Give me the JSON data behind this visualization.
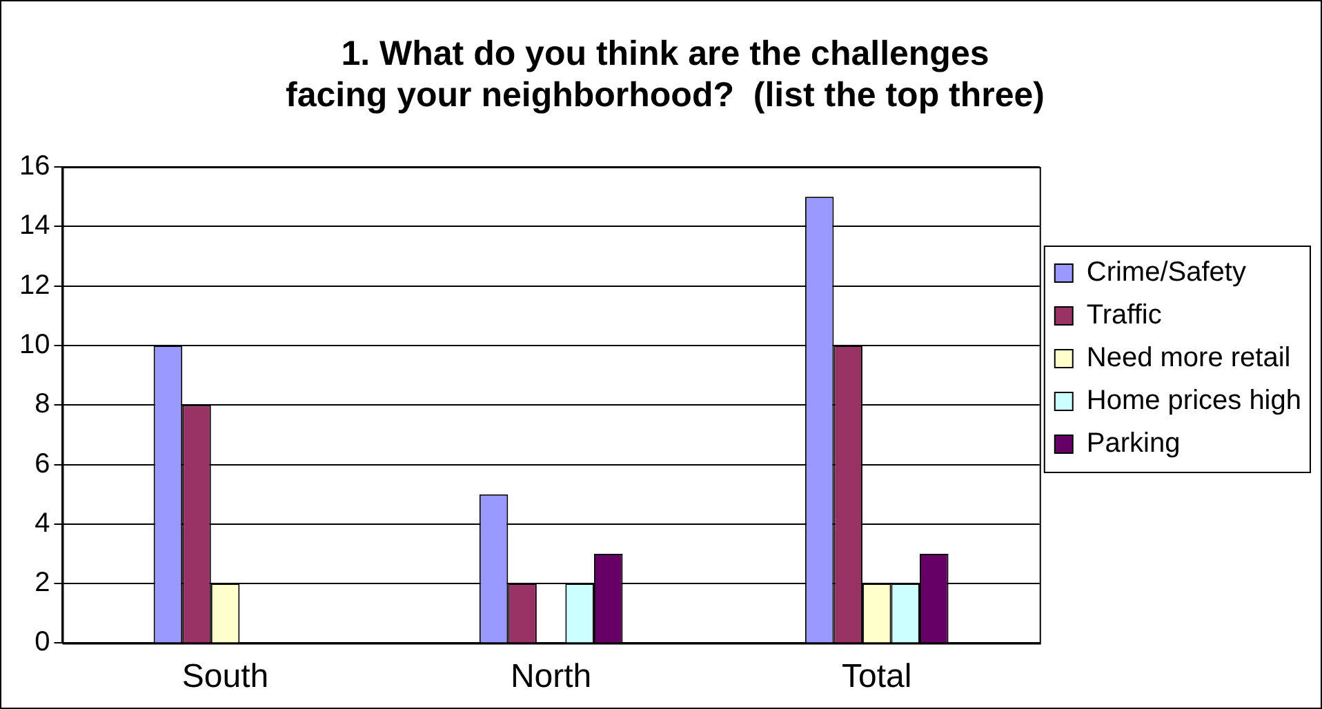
{
  "chart_data": {
    "type": "bar",
    "title": "1. What do you think are the challenges facing your neighborhood?  (list the top three)",
    "categories": [
      "South",
      "North",
      "Total"
    ],
    "series": [
      {
        "name": "Crime/Safety",
        "color": "#9999ff",
        "values": [
          10,
          5,
          15
        ]
      },
      {
        "name": "Traffic",
        "color": "#993366",
        "values": [
          8,
          2,
          10
        ]
      },
      {
        "name": "Need more retail",
        "color": "#ffffcc",
        "values": [
          2,
          0,
          2
        ]
      },
      {
        "name": "Home prices high",
        "color": "#ccffff",
        "values": [
          0,
          2,
          2
        ]
      },
      {
        "name": "Parking",
        "color": "#660066",
        "values": [
          0,
          3,
          3
        ]
      }
    ],
    "ylim": [
      0,
      16
    ],
    "yticks": [
      0,
      2,
      4,
      6,
      8,
      10,
      12,
      14,
      16
    ],
    "grid": "y",
    "legend": "right"
  }
}
